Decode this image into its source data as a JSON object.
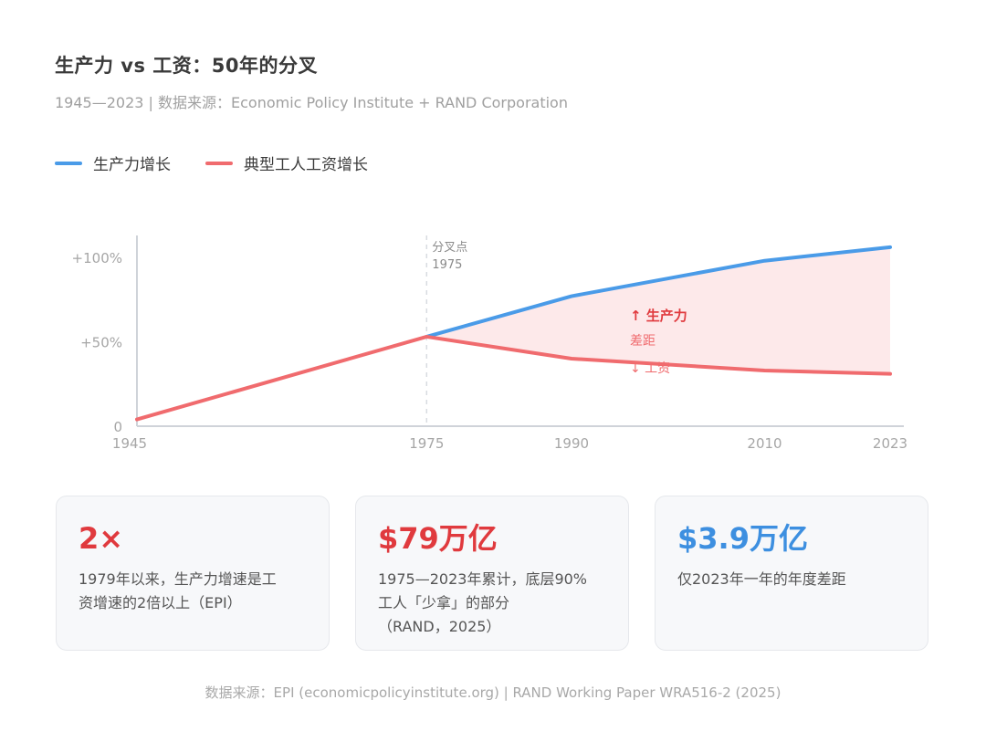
{
  "header": {
    "title": "生产力 vs 工资：50年的分叉",
    "subtitle": "1945—2023 | 数据来源：Economic Policy Institute + RAND Corporation"
  },
  "colors": {
    "productivity": "#4a9be8",
    "wages": "#f06b6e",
    "gap_fill": "#fde9ea",
    "accent_red": "#e03a3e",
    "accent_blue": "#3d8fe0"
  },
  "chart_data": {
    "type": "line",
    "title": "",
    "xlabel": "",
    "ylabel": "",
    "x_ticks": [
      1945,
      1975,
      1990,
      2010,
      2023
    ],
    "y_ticks": [
      {
        "value": 0,
        "label": "0"
      },
      {
        "value": 50,
        "label": "+50%"
      },
      {
        "value": 100,
        "label": "+100%"
      }
    ],
    "xlim": [
      1945,
      2023
    ],
    "ylim": [
      0,
      110
    ],
    "grid": false,
    "legend": "top-left",
    "series": [
      {
        "name": "生产力增长",
        "color": "#4a9be8",
        "points": [
          [
            1975,
            53
          ],
          [
            1990,
            77
          ],
          [
            2010,
            98
          ],
          [
            2023,
            106
          ]
        ]
      },
      {
        "name": "典型工人工资增长",
        "color": "#f06b6e",
        "points": [
          [
            1945,
            4
          ],
          [
            1975,
            53
          ],
          [
            1990,
            40
          ],
          [
            2010,
            33
          ],
          [
            2023,
            31
          ]
        ]
      }
    ],
    "annotations": {
      "divergence_year": 1975,
      "divergence_label_1": "分叉点",
      "divergence_label_2": "1975",
      "gap_label_top": "↑ 生产力",
      "gap_label_mid": "差距",
      "gap_label_bottom": "↓ 工资"
    }
  },
  "cards": [
    {
      "value": "2×",
      "desc": "1979年以来，生产力增速是工\n资增速的2倍以上（EPI）",
      "color": "#e03a3e"
    },
    {
      "value": "$79万亿",
      "desc": "1975—2023年累计，底层90%\n工人「少拿」的部分\n（RAND，2025）",
      "color": "#e03a3e"
    },
    {
      "value": "$3.9万亿",
      "desc": "仅2023年一年的年度差距",
      "color": "#3d8fe0"
    }
  ],
  "footer": "数据来源：EPI (economicpolicyinstitute.org) | RAND Working Paper WRA516-2 (2025)"
}
